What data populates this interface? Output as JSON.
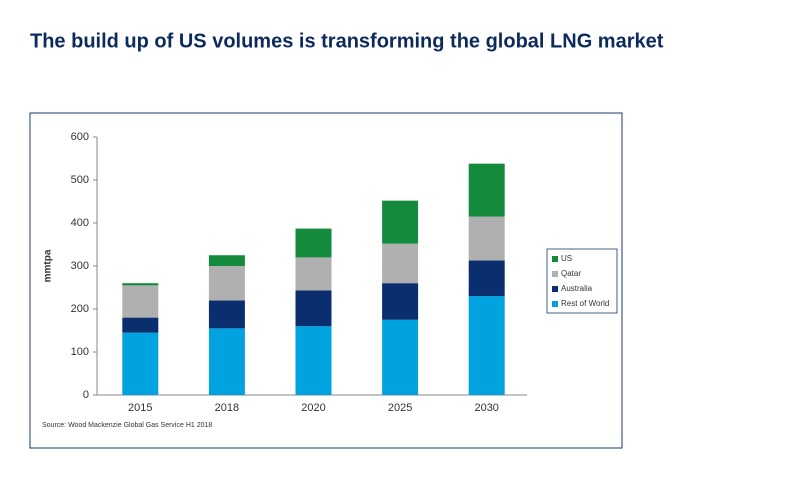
{
  "chart_data": {
    "type": "stacked_bar",
    "title": "The build up of US volumes is transforming the global LNG market",
    "y_label": "mmtpa",
    "source": "Source: Wood Mackenzie Global Gas Service H1 2018",
    "categories": [
      "2015",
      "2018",
      "2020",
      "2025",
      "2030"
    ],
    "series": [
      {
        "name": "Rest of World",
        "color": "#00a3e0",
        "values": [
          145,
          155,
          160,
          175,
          230
        ]
      },
      {
        "name": "Australia",
        "color": "#0b2f6e",
        "values": [
          35,
          65,
          83,
          85,
          83
        ]
      },
      {
        "name": "Qatar",
        "color": "#b0b0b0",
        "values": [
          75,
          80,
          77,
          92,
          102
        ]
      },
      {
        "name": "US",
        "color": "#138a3c",
        "values": [
          5,
          25,
          67,
          100,
          123
        ]
      }
    ],
    "ylim": [
      0,
      600
    ],
    "yticks": [
      0,
      100,
      200,
      300,
      400,
      500,
      600
    ],
    "legend": "right"
  }
}
